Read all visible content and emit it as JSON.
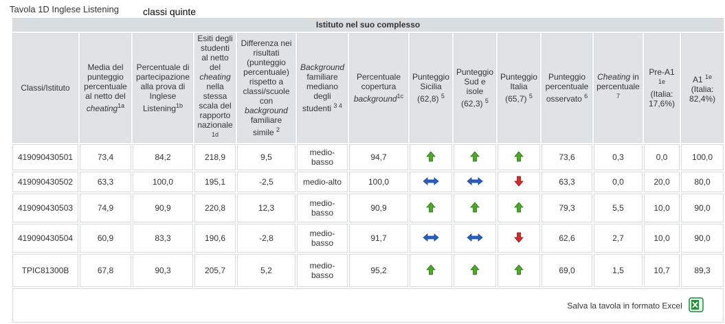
{
  "title": "Tavola 1D Inglese Listening",
  "subtitle": "classi quinte",
  "band_label": "Istituto nel suo complesso",
  "columns": [
    {
      "html": "Classi/Istituto"
    },
    {
      "html": "Media del punteggio percentuale al netto del <i>cheating</i><sup>1a</sup>"
    },
    {
      "html": "Percentuale di partecipazione alla prova di Inglese Listening<sup>1b</sup>"
    },
    {
      "html": "Esiti degli studenti al netto del <i>cheating</i> nella stessa scala del rapporto nazionale<br><sup>1d</sup>"
    },
    {
      "html": "Differenza nei risultati (punteggio percentuale) rispetto a classi/scuole con <i>background</i> familiare simile <sup>2</sup>"
    },
    {
      "html": "<i>Background</i> familiare mediano degli studenti <sup>3 4</sup>"
    },
    {
      "html": "Percentuale copertura <i>background</i><sup>1c</sup>"
    },
    {
      "html": "Punteggio Sicilia (62,8) <sup>5</sup>"
    },
    {
      "html": "Punteggio Sud e isole (62,3) <sup>5</sup>"
    },
    {
      "html": "Punteggio Italia (65,7) <sup>5</sup>"
    },
    {
      "html": "Punteggio percentuale osservato <sup>6</sup>"
    },
    {
      "html": "<i>Cheating</i> in percentuale <sup>7</sup>"
    },
    {
      "html": "Pre-A1 <sup>1e</sup> (Italia: 17,6%)"
    },
    {
      "html": "A1 <sup>1e</sup> (Italia: 82,4%)"
    }
  ],
  "rows": [
    {
      "id": "419090430501",
      "media": "73,4",
      "partecipazione": "84,2",
      "esiti": "218,9",
      "differenza": "9,5",
      "background": "medio-basso",
      "copertura": "94,7",
      "sicilia": "up",
      "sud": "up",
      "italia": "up",
      "osservato": "73,6",
      "cheating": "0,3",
      "pre_a1": "0,0",
      "a1": "100,0"
    },
    {
      "id": "419090430502",
      "media": "63,3",
      "partecipazione": "100,0",
      "esiti": "195,1",
      "differenza": "-2,5",
      "background": "medio-alto",
      "copertura": "100,0",
      "sicilia": "equal",
      "sud": "equal",
      "italia": "down",
      "osservato": "63,3",
      "cheating": "0,0",
      "pre_a1": "20,0",
      "a1": "80,0"
    },
    {
      "id": "419090430503",
      "media": "74,9",
      "partecipazione": "90,9",
      "esiti": "220,8",
      "differenza": "12,3",
      "background": "medio-basso",
      "copertura": "90,9",
      "sicilia": "up",
      "sud": "up",
      "italia": "up",
      "osservato": "79,3",
      "cheating": "5,5",
      "pre_a1": "10,0",
      "a1": "90,0"
    },
    {
      "id": "419090430504",
      "media": "60,9",
      "partecipazione": "83,3",
      "esiti": "190,6",
      "differenza": "-2,8",
      "background": "medio-basso",
      "copertura": "91,7",
      "sicilia": "equal",
      "sud": "equal",
      "italia": "down",
      "osservato": "62,6",
      "cheating": "2,7",
      "pre_a1": "10,0",
      "a1": "90,0"
    },
    {
      "id": "TPIC81300B",
      "media": "67,8",
      "partecipazione": "90,3",
      "esiti": "205,7",
      "differenza": "5,2",
      "background": "medio-basso",
      "copertura": "95,2",
      "sicilia": "up",
      "sud": "up",
      "italia": "up",
      "osservato": "69,0",
      "cheating": "1,5",
      "pre_a1": "10,7",
      "a1": "89,3"
    }
  ],
  "save_label": "Salva la tavola in formato Excel",
  "colors": {
    "up": "#4ea62a",
    "down": "#d42b2b",
    "equal": "#2b5fc4",
    "header_bg": "#dfe3e6",
    "excel": "#1f8f3a"
  }
}
